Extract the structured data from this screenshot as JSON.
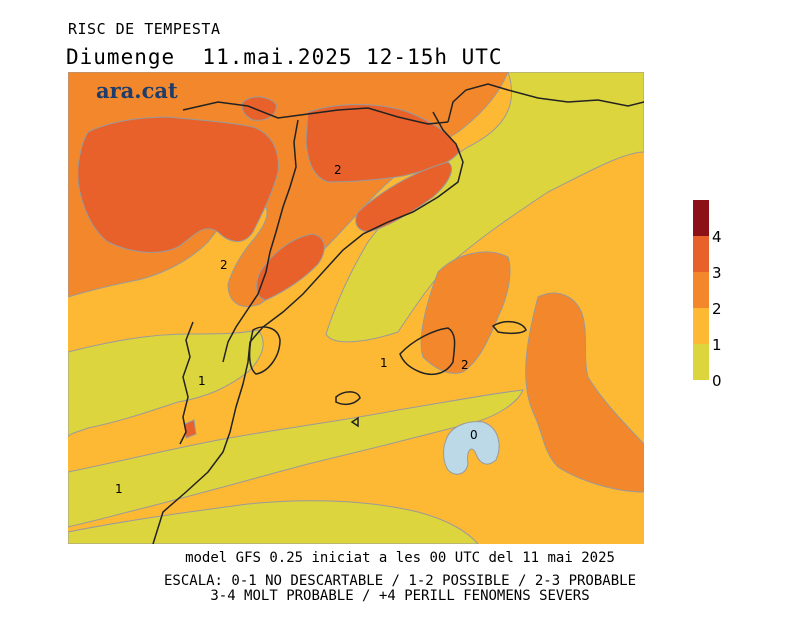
{
  "header": {
    "title": "RISC DE TEMPESTA",
    "date_line": "Diumenge  11.mai.2025 12-15h UTC"
  },
  "brand": "ara.cat",
  "map": {
    "contour_labels": [
      "2",
      "2",
      "1",
      "1",
      "1",
      "2",
      "0",
      "1"
    ]
  },
  "legend": {
    "levels": [
      {
        "label": "4",
        "color": "#8b1018"
      },
      {
        "label": "3",
        "color": "#e8612b"
      },
      {
        "label": "2",
        "color": "#f2872c"
      },
      {
        "label": "1",
        "color": "#fdb934"
      },
      {
        "label": "0",
        "color": "#dcd53e"
      }
    ],
    "top_color": "#8b1018"
  },
  "colors": {
    "level0": "#dcd53e",
    "level1": "#fdb934",
    "level2": "#f2872c",
    "level3": "#e8612b",
    "below0": "#bcd9e8",
    "contour": "#9a9a9a",
    "coast": "#222222"
  },
  "footer": {
    "model": "model GFS 0.25 iniciat a les 00 UTC del 11 mai 2025",
    "scale_line1": "ESCALA: 0-1 NO DESCARTABLE / 1-2 POSSIBLE / 2-3 PROBABLE",
    "scale_line2": "3-4 MOLT PROBABLE / +4 PERILL FENOMENS SEVERS"
  }
}
